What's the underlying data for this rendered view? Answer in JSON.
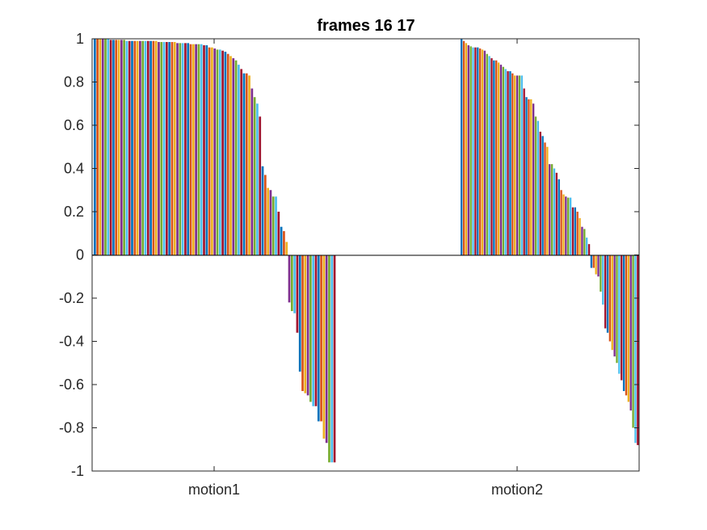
{
  "chart_data": {
    "type": "bar",
    "title": "frames 16 17",
    "xlabel": "",
    "ylabel": "",
    "ylim": [
      -1,
      1
    ],
    "yticks": [
      "-1",
      "-0.8",
      "-0.6",
      "-0.4",
      "-0.2",
      "0",
      "0.2",
      "0.4",
      "0.6",
      "0.8",
      "1"
    ],
    "categories": [
      "motion1",
      "motion2"
    ],
    "grid": false,
    "legend": "none",
    "palette": [
      "#0072BD",
      "#D95319",
      "#EDB120",
      "#7E2F8E",
      "#77AC30",
      "#4DBEEE",
      "#A2142F"
    ],
    "groups": [
      {
        "category": "motion1",
        "values": [
          1.0,
          1.0,
          1.0,
          1.0,
          1.0,
          1.0,
          0.995,
          0.995,
          0.995,
          0.995,
          0.995,
          0.995,
          0.99,
          0.99,
          0.99,
          0.99,
          0.99,
          0.99,
          0.99,
          0.99,
          0.99,
          0.99,
          0.99,
          0.99,
          0.985,
          0.985,
          0.985,
          0.985,
          0.985,
          0.985,
          0.985,
          0.98,
          0.98,
          0.98,
          0.98,
          0.98,
          0.975,
          0.975,
          0.975,
          0.975,
          0.975,
          0.97,
          0.97,
          0.96,
          0.96,
          0.955,
          0.95,
          0.95,
          0.945,
          0.94,
          0.93,
          0.92,
          0.91,
          0.9,
          0.88,
          0.86,
          0.84,
          0.84,
          0.83,
          0.77,
          0.73,
          0.7,
          0.64,
          0.41,
          0.37,
          0.31,
          0.3,
          0.27,
          0.27,
          0.2,
          0.13,
          0.11,
          0.06,
          -0.22,
          -0.26,
          -0.27,
          -0.36,
          -0.54,
          -0.63,
          -0.64,
          -0.65,
          -0.68,
          -0.7,
          -0.7,
          -0.77,
          -0.77,
          -0.85,
          -0.87,
          -0.96,
          -0.96,
          -0.96
        ]
      },
      {
        "category": "motion2",
        "values": [
          1.0,
          0.99,
          0.98,
          0.97,
          0.965,
          0.96,
          0.96,
          0.96,
          0.955,
          0.95,
          0.945,
          0.93,
          0.92,
          0.91,
          0.9,
          0.9,
          0.89,
          0.88,
          0.87,
          0.86,
          0.85,
          0.85,
          0.84,
          0.83,
          0.83,
          0.83,
          0.83,
          0.77,
          0.73,
          0.72,
          0.72,
          0.7,
          0.64,
          0.62,
          0.57,
          0.55,
          0.52,
          0.5,
          0.42,
          0.42,
          0.4,
          0.38,
          0.35,
          0.3,
          0.28,
          0.27,
          0.265,
          0.265,
          0.22,
          0.22,
          0.2,
          0.17,
          0.13,
          0.12,
          0.08,
          0.05,
          -0.06,
          -0.06,
          -0.09,
          -0.1,
          -0.17,
          -0.23,
          -0.34,
          -0.36,
          -0.4,
          -0.44,
          -0.47,
          -0.5,
          -0.55,
          -0.58,
          -0.63,
          -0.65,
          -0.68,
          -0.72,
          -0.8,
          -0.87,
          -0.88
        ]
      }
    ]
  }
}
